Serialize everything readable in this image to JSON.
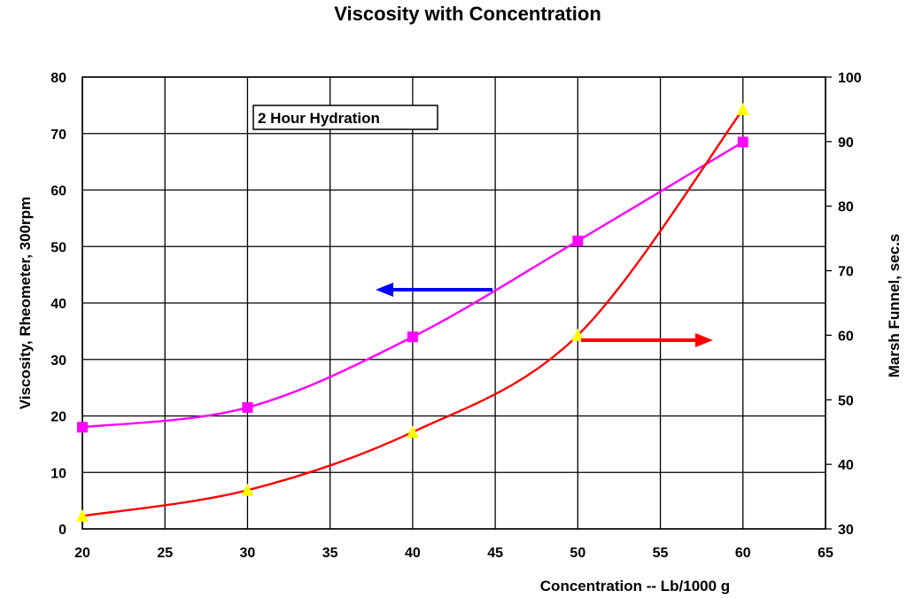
{
  "chart_data": {
    "type": "line",
    "title": "Viscosity with Concentration",
    "xlabel": "Concentration -- Lb/1000 g",
    "ylabel": "Viscosity, Rheometer, 300rpm",
    "y2label": "Marsh Funnel, sec.s",
    "annotation": "2 Hour Hydration",
    "xlim": [
      20,
      65
    ],
    "ylim": [
      0,
      80
    ],
    "y2lim": [
      30,
      100
    ],
    "x_ticks": [
      "20",
      "25",
      "30",
      "35",
      "40",
      "45",
      "50",
      "55",
      "60",
      "65"
    ],
    "y_ticks": [
      "0",
      "10",
      "20",
      "30",
      "40",
      "50",
      "60",
      "70",
      "80"
    ],
    "y2_ticks": [
      "30",
      "40",
      "50",
      "60",
      "70",
      "80",
      "90",
      "100"
    ],
    "grid": true,
    "series": [
      {
        "axis": "left",
        "color": "#ff00ff",
        "marker": "square",
        "x": [
          20,
          30,
          40,
          50,
          60
        ],
        "values": [
          18,
          21.5,
          34,
          51,
          68.5
        ]
      },
      {
        "axis": "right",
        "color": "#ff0000",
        "marker": "triangle",
        "marker_color": "#ffff00",
        "x": [
          20,
          30,
          40,
          50,
          60
        ],
        "values": [
          32,
          36,
          45,
          60,
          95
        ]
      }
    ],
    "arrows": [
      {
        "color": "#0000ff",
        "direction": "left",
        "points_to_axis": "left"
      },
      {
        "color": "#ff0000",
        "direction": "right",
        "points_to_axis": "right"
      }
    ]
  }
}
